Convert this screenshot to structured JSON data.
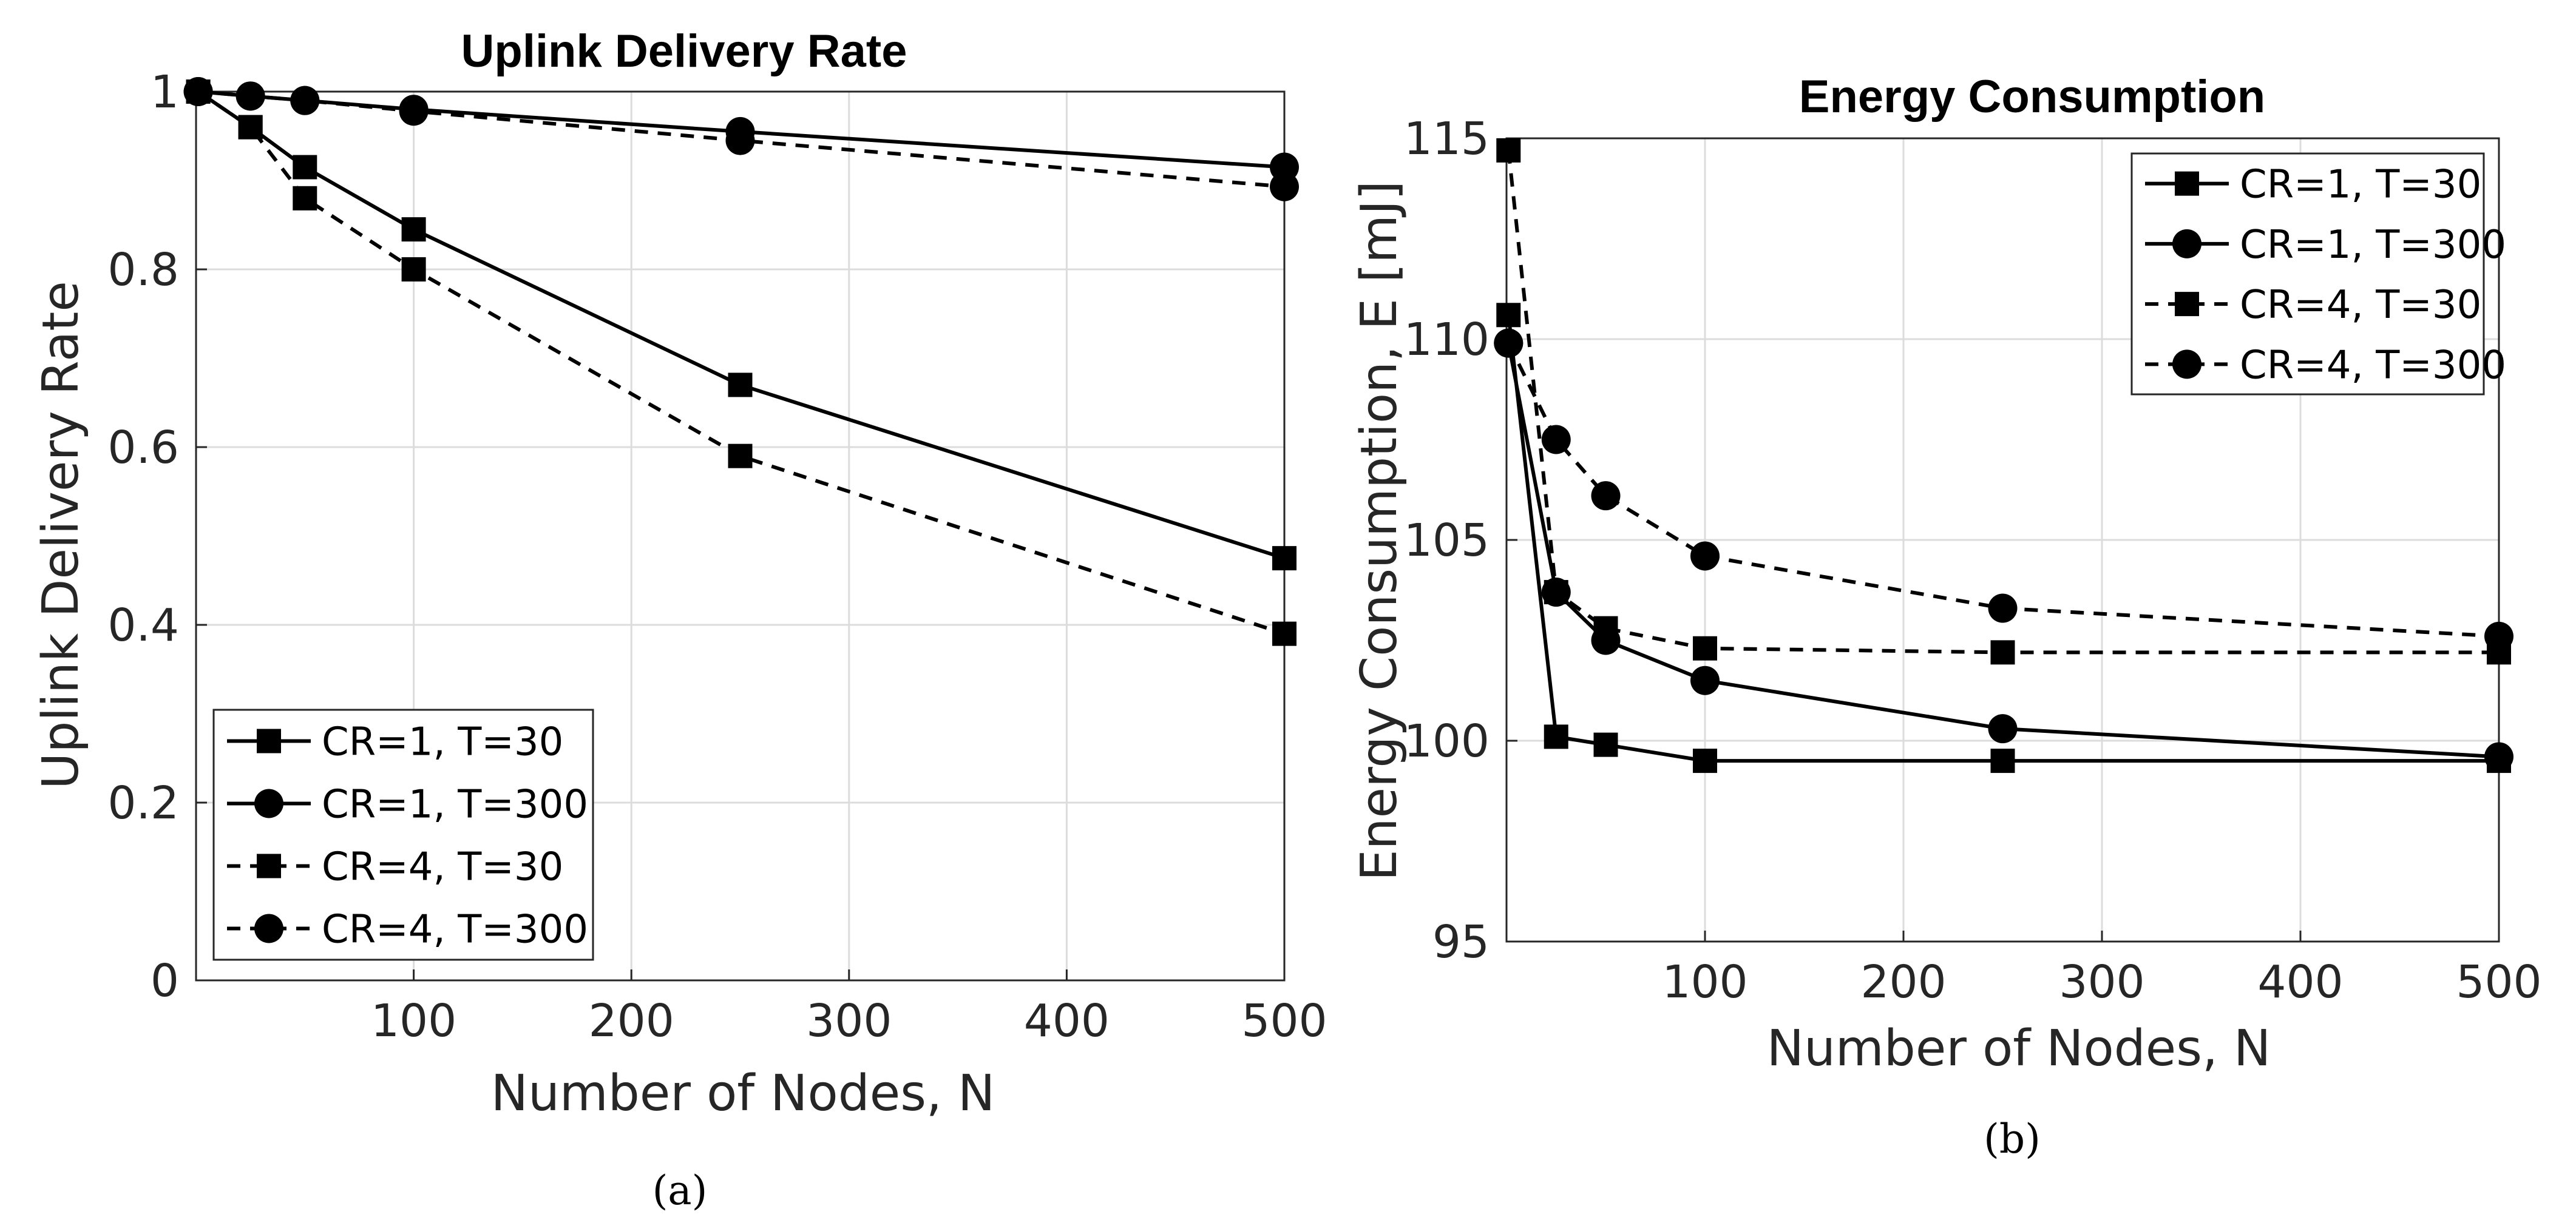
{
  "chart_data": [
    {
      "type": "line",
      "title": "Uplink Delivery Rate",
      "xlabel": "Number of Nodes, N",
      "ylabel": "Uplink Delivery Rate",
      "caption": "(a)",
      "xlim": [
        0,
        500
      ],
      "ylim": [
        0,
        1
      ],
      "xticks": [
        100,
        200,
        300,
        400,
        500
      ],
      "yticks": [
        0,
        0.2,
        0.4,
        0.6,
        0.8,
        1
      ],
      "ytick_labels": [
        "0",
        "0.2",
        "0.4",
        "0.6",
        "0.8",
        "1"
      ],
      "grid": true,
      "legend_position": "bottom-left",
      "x": [
        1,
        25,
        50,
        100,
        250,
        500
      ],
      "series": [
        {
          "name": "CR=1, T=30",
          "values": [
            1.0,
            0.96,
            0.915,
            0.845,
            0.67,
            0.475
          ],
          "line": "solid",
          "marker": "square"
        },
        {
          "name": "CR=1, T=300",
          "values": [
            1.0,
            0.995,
            0.99,
            0.98,
            0.955,
            0.915
          ],
          "line": "solid",
          "marker": "circle"
        },
        {
          "name": "CR=4, T=30",
          "values": [
            1.0,
            0.96,
            0.88,
            0.8,
            0.59,
            0.39
          ],
          "line": "dashed",
          "marker": "square"
        },
        {
          "name": "CR=4, T=300",
          "values": [
            1.0,
            0.995,
            0.99,
            0.978,
            0.945,
            0.893
          ],
          "line": "dashed",
          "marker": "circle"
        }
      ]
    },
    {
      "type": "line",
      "title": "Energy Consumption",
      "xlabel": "Number of Nodes, N",
      "ylabel": "Energy Consumption, E [mJ]",
      "caption": "(b)",
      "xlim": [
        0,
        500
      ],
      "ylim": [
        95,
        115
      ],
      "xticks": [
        100,
        200,
        300,
        400,
        500
      ],
      "yticks": [
        95,
        100,
        105,
        110,
        115
      ],
      "ytick_labels": [
        "95",
        "100",
        "105",
        "110",
        "115"
      ],
      "grid": true,
      "legend_position": "top-right",
      "x": [
        1,
        25,
        50,
        100,
        250,
        500
      ],
      "series": [
        {
          "name": "CR=1, T=30",
          "values": [
            110.6,
            100.1,
            99.9,
            99.5,
            99.5,
            99.5
          ],
          "line": "solid",
          "marker": "square"
        },
        {
          "name": "CR=1, T=300",
          "values": [
            109.9,
            103.7,
            102.5,
            101.5,
            100.3,
            99.6
          ],
          "line": "solid",
          "marker": "circle"
        },
        {
          "name": "CR=4, T=30",
          "values": [
            114.7,
            103.7,
            102.8,
            102.3,
            102.2,
            102.2
          ],
          "line": "dashed",
          "marker": "square"
        },
        {
          "name": "CR=4, T=300",
          "values": [
            109.9,
            107.5,
            106.1,
            104.6,
            103.3,
            102.6
          ],
          "line": "dashed",
          "marker": "circle"
        }
      ]
    }
  ]
}
